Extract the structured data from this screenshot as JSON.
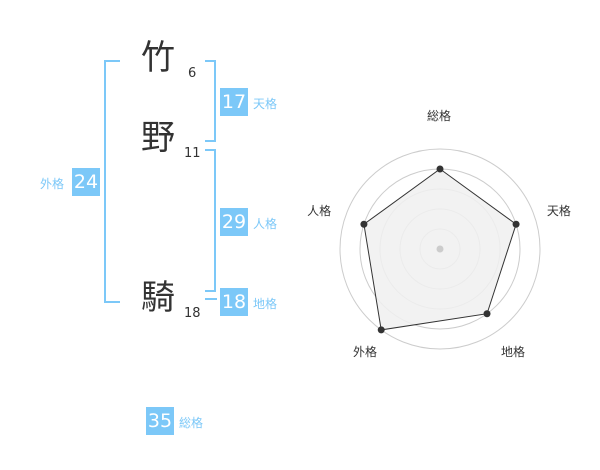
{
  "name": [
    {
      "char": "竹",
      "strokes": "6"
    },
    {
      "char": "野",
      "strokes": "11"
    },
    {
      "char": "騎",
      "strokes": "18"
    }
  ],
  "kaku": {
    "tenkaku": {
      "value": "17",
      "label": "天格"
    },
    "jinkaku": {
      "value": "29",
      "label": "人格"
    },
    "chikaku": {
      "value": "18",
      "label": "地格"
    },
    "gaikaku": {
      "value": "24",
      "label": "外格"
    },
    "soukaku": {
      "value": "35",
      "label": "総格"
    }
  },
  "colors": {
    "accent": "#7cc8f8",
    "text": "#333333",
    "radar_fill": "#f0f0f0",
    "ring": "#cccccc"
  },
  "chart_data": {
    "type": "radar",
    "axes": [
      "総格",
      "天格",
      "地格",
      "外格",
      "人格"
    ],
    "values": [
      4,
      4,
      4,
      5,
      4
    ],
    "range": [
      0,
      5
    ],
    "rings": 5
  }
}
